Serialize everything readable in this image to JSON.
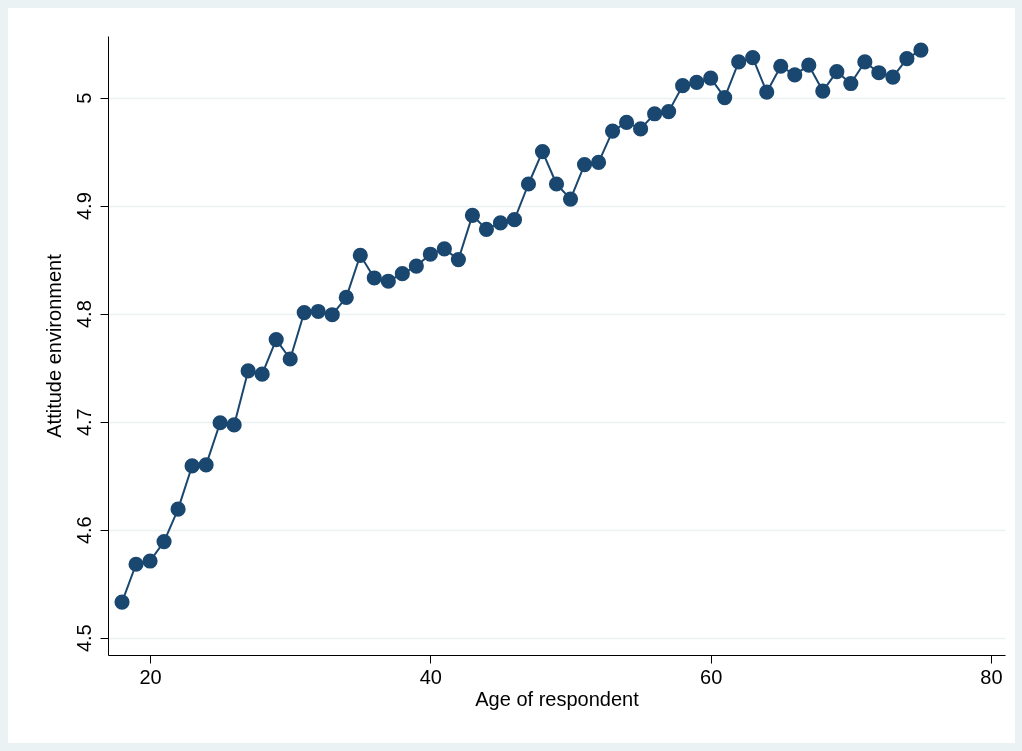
{
  "chart_data": {
    "type": "line",
    "xlabel": "Age of respondent",
    "ylabel": "Attitude environment",
    "x": [
      18,
      19,
      20,
      21,
      22,
      23,
      24,
      25,
      26,
      27,
      28,
      29,
      30,
      31,
      32,
      33,
      34,
      35,
      36,
      37,
      38,
      39,
      40,
      41,
      42,
      43,
      44,
      45,
      46,
      47,
      48,
      49,
      50,
      51,
      52,
      53,
      54,
      55,
      56,
      57,
      58,
      59,
      60,
      61,
      62,
      63,
      64,
      65,
      66,
      67,
      68,
      69,
      70,
      71,
      72,
      73,
      74,
      75
    ],
    "series": [
      {
        "color": "#1a476f",
        "values": [
          4.533,
          4.568,
          4.571,
          4.589,
          4.619,
          4.659,
          4.66,
          4.699,
          4.697,
          4.747,
          4.744,
          4.776,
          4.758,
          4.801,
          4.802,
          4.799,
          4.815,
          4.854,
          4.833,
          4.83,
          4.837,
          4.844,
          4.855,
          4.86,
          4.85,
          4.891,
          4.878,
          4.884,
          4.887,
          4.92,
          4.95,
          4.92,
          4.906,
          4.938,
          4.94,
          4.969,
          4.977,
          4.971,
          4.985,
          4.987,
          5.011,
          5.014,
          5.018,
          5.0,
          5.033,
          5.037,
          5.005,
          5.029,
          5.021,
          5.03,
          5.006,
          5.024,
          5.013,
          5.033,
          5.023,
          5.019,
          5.036,
          5.044
        ]
      }
    ],
    "xlim": [
      17,
      81
    ],
    "xticks": [
      20,
      40,
      60,
      80
    ],
    "ylim": [
      4.484,
      5.057
    ],
    "yticks": [
      4.5,
      4.6,
      4.7,
      4.8,
      4.9,
      5
    ],
    "grid": "y",
    "marker": "circle",
    "line_style": "solid"
  }
}
